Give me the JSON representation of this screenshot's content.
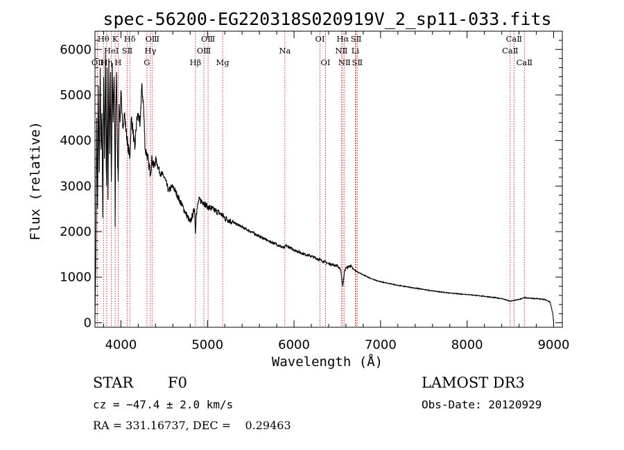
{
  "chart_data": {
    "type": "line",
    "title": "spec-56200-EG220318S020919V_2_sp11-033.fits",
    "xlabel": "Wavelength (Å)",
    "ylabel": "Flux (relative)",
    "xlim": [
      3700,
      9100
    ],
    "ylim": [
      -100,
      6400
    ],
    "xticks": [
      4000,
      5000,
      6000,
      7000,
      8000,
      9000
    ],
    "yticks": [
      0,
      1000,
      2000,
      3000,
      4000,
      5000,
      6000
    ],
    "series": [
      {
        "name": "Flux",
        "x": [
          3700,
          3710,
          3720,
          3730,
          3740,
          3750,
          3760,
          3770,
          3780,
          3790,
          3800,
          3810,
          3820,
          3830,
          3835,
          3840,
          3850,
          3860,
          3870,
          3880,
          3889,
          3895,
          3900,
          3910,
          3920,
          3930,
          3933,
          3940,
          3950,
          3960,
          3968,
          3975,
          3980,
          3990,
          4000,
          4010,
          4020,
          4040,
          4060,
          4080,
          4102,
          4120,
          4140,
          4160,
          4180,
          4200,
          4220,
          4240,
          4260,
          4280,
          4300,
          4320,
          4340,
          4360,
          4380,
          4400,
          4450,
          4500,
          4550,
          4600,
          4650,
          4700,
          4750,
          4800,
          4850,
          4861,
          4870,
          4900,
          4950,
          5000,
          5050,
          5100,
          5150,
          5200,
          5300,
          5400,
          5500,
          5600,
          5700,
          5800,
          5890,
          5900,
          6000,
          6100,
          6200,
          6300,
          6400,
          6500,
          6540,
          6563,
          6580,
          6600,
          6650,
          6700,
          6800,
          6900,
          7000,
          7200,
          7400,
          7600,
          7800,
          8000,
          8200,
          8400,
          8498,
          8542,
          8600,
          8662,
          8700,
          8800,
          8900,
          8960,
          8990,
          9000
        ],
        "values": [
          100,
          1500,
          4500,
          2500,
          5200,
          3300,
          5600,
          3800,
          4600,
          2300,
          5400,
          3600,
          5900,
          3400,
          3000,
          5600,
          2700,
          5800,
          3700,
          5500,
          3100,
          4200,
          5700,
          4400,
          5400,
          3800,
          2100,
          4600,
          5500,
          3700,
          3100,
          4000,
          4800,
          4400,
          5100,
          4600,
          4300,
          4600,
          4200,
          3900,
          3600,
          4500,
          4200,
          3800,
          4400,
          4600,
          4300,
          5200,
          4800,
          3800,
          3700,
          3500,
          3300,
          3600,
          3400,
          3600,
          3300,
          3200,
          2900,
          3000,
          2800,
          2600,
          2400,
          2200,
          2500,
          1950,
          2400,
          2700,
          2650,
          2550,
          2500,
          2450,
          2400,
          2300,
          2200,
          2100,
          2000,
          1900,
          1800,
          1720,
          1630,
          1700,
          1600,
          1520,
          1460,
          1380,
          1300,
          1250,
          1150,
          800,
          1100,
          1200,
          1250,
          1150,
          1050,
          960,
          900,
          820,
          760,
          700,
          650,
          620,
          580,
          530,
          470,
          490,
          510,
          550,
          540,
          530,
          510,
          450,
          200,
          10
        ]
      }
    ],
    "spectral_lines": [
      {
        "label": "OⅡ",
        "wavelength": 3727,
        "row": 2
      },
      {
        "label": "Hθ",
        "wavelength": 3798,
        "row": 0
      },
      {
        "label": "Hη",
        "wavelength": 3835,
        "row": 2
      },
      {
        "label": "HeⅠ",
        "wavelength": 3889,
        "row": 1
      },
      {
        "label": "K",
        "wavelength": 3933,
        "row": 0
      },
      {
        "label": "H",
        "wavelength": 3968,
        "row": 2
      },
      {
        "label": "SⅡ",
        "wavelength": 4072,
        "row": 1
      },
      {
        "label": "Hδ",
        "wavelength": 4102,
        "row": 0
      },
      {
        "label": "G",
        "wavelength": 4300,
        "row": 2
      },
      {
        "label": "Hγ",
        "wavelength": 4340,
        "row": 1
      },
      {
        "label": "OⅢ",
        "wavelength": 4363,
        "row": 0
      },
      {
        "label": "Hβ",
        "wavelength": 4861,
        "row": 2
      },
      {
        "label": "OⅢ",
        "wavelength": 4959,
        "row": 1
      },
      {
        "label": "OⅢ",
        "wavelength": 5007,
        "row": 0
      },
      {
        "label": "Mg",
        "wavelength": 5175,
        "row": 2
      },
      {
        "label": "Na",
        "wavelength": 5894,
        "row": 1
      },
      {
        "label": "OⅠ",
        "wavelength": 6300,
        "row": 0
      },
      {
        "label": "OⅠ",
        "wavelength": 6364,
        "row": 2
      },
      {
        "label": "NⅡ",
        "wavelength": 6548,
        "row": 1
      },
      {
        "label": "Hα",
        "wavelength": 6563,
        "row": 0
      },
      {
        "label": "NⅡ",
        "wavelength": 6583,
        "row": 2
      },
      {
        "label": "Li",
        "wavelength": 6708,
        "row": 1
      },
      {
        "label": "SⅡ",
        "wavelength": 6717,
        "row": 0
      },
      {
        "label": "SⅡ",
        "wavelength": 6731,
        "row": 2
      },
      {
        "label": "CaⅡ",
        "wavelength": 8498,
        "row": 1
      },
      {
        "label": "CaⅡ",
        "wavelength": 8542,
        "row": 0
      },
      {
        "label": "CaⅡ",
        "wavelength": 8662,
        "row": 2
      }
    ]
  },
  "info": {
    "object_class": "STAR",
    "subclass": "F0",
    "survey": "LAMOST DR3",
    "cz": "cz = −47.4 ± 2.0 km/s",
    "obs_date": "Obs-Date: 20120929",
    "coords": "RA = 331.16737, DEC =    0.29463"
  },
  "colors": {
    "line": "#000000",
    "marker": "#c00000"
  }
}
